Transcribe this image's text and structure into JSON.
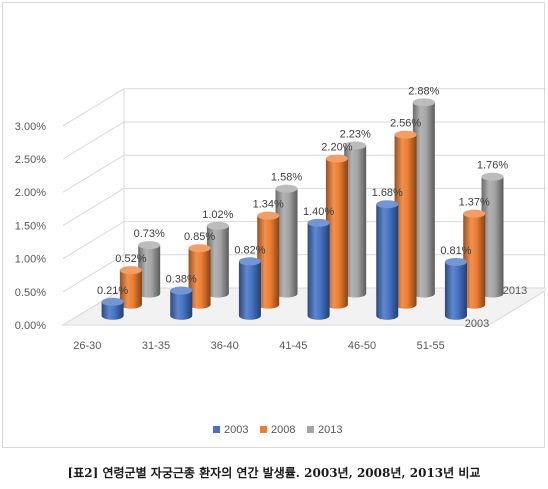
{
  "chart_data": {
    "type": "bar",
    "style": "3d-cylinder",
    "categories": [
      "26-30",
      "31-35",
      "36-40",
      "41-45",
      "46-50",
      "51-55"
    ],
    "series": [
      {
        "name": "2003",
        "color": "#4472c4",
        "values": [
          0.21,
          0.38,
          0.82,
          1.4,
          1.68,
          0.81
        ],
        "labels": [
          "0.21%",
          "0.38%",
          "0.82%",
          "1.40%",
          "1.68%",
          "0.81%"
        ]
      },
      {
        "name": "2008",
        "color": "#ed7d31",
        "values": [
          0.52,
          0.85,
          1.34,
          2.2,
          2.56,
          1.37
        ],
        "labels": [
          "0.52%",
          "0.85%",
          "1.34%",
          "2.20%",
          "2.56%",
          "1.37%"
        ]
      },
      {
        "name": "2013",
        "color": "#a5a5a5",
        "values": [
          0.73,
          1.02,
          1.58,
          2.23,
          2.88,
          1.76
        ],
        "labels": [
          "0.73%",
          "1.02%",
          "1.58%",
          "2.23%",
          "2.88%",
          "1.76%"
        ]
      }
    ],
    "yticks": [
      "0.00%",
      "0.50%",
      "1.00%",
      "1.50%",
      "2.00%",
      "2.50%",
      "3.00%"
    ],
    "ylim": [
      0,
      3.0
    ],
    "depth_labels": [
      "2013",
      "2003"
    ],
    "legend_position": "bottom",
    "grid": true
  },
  "caption": "[표2] 연령군별 자궁근종 환자의 연간 발생률. 2003년, 2008년, 2013년 비교"
}
